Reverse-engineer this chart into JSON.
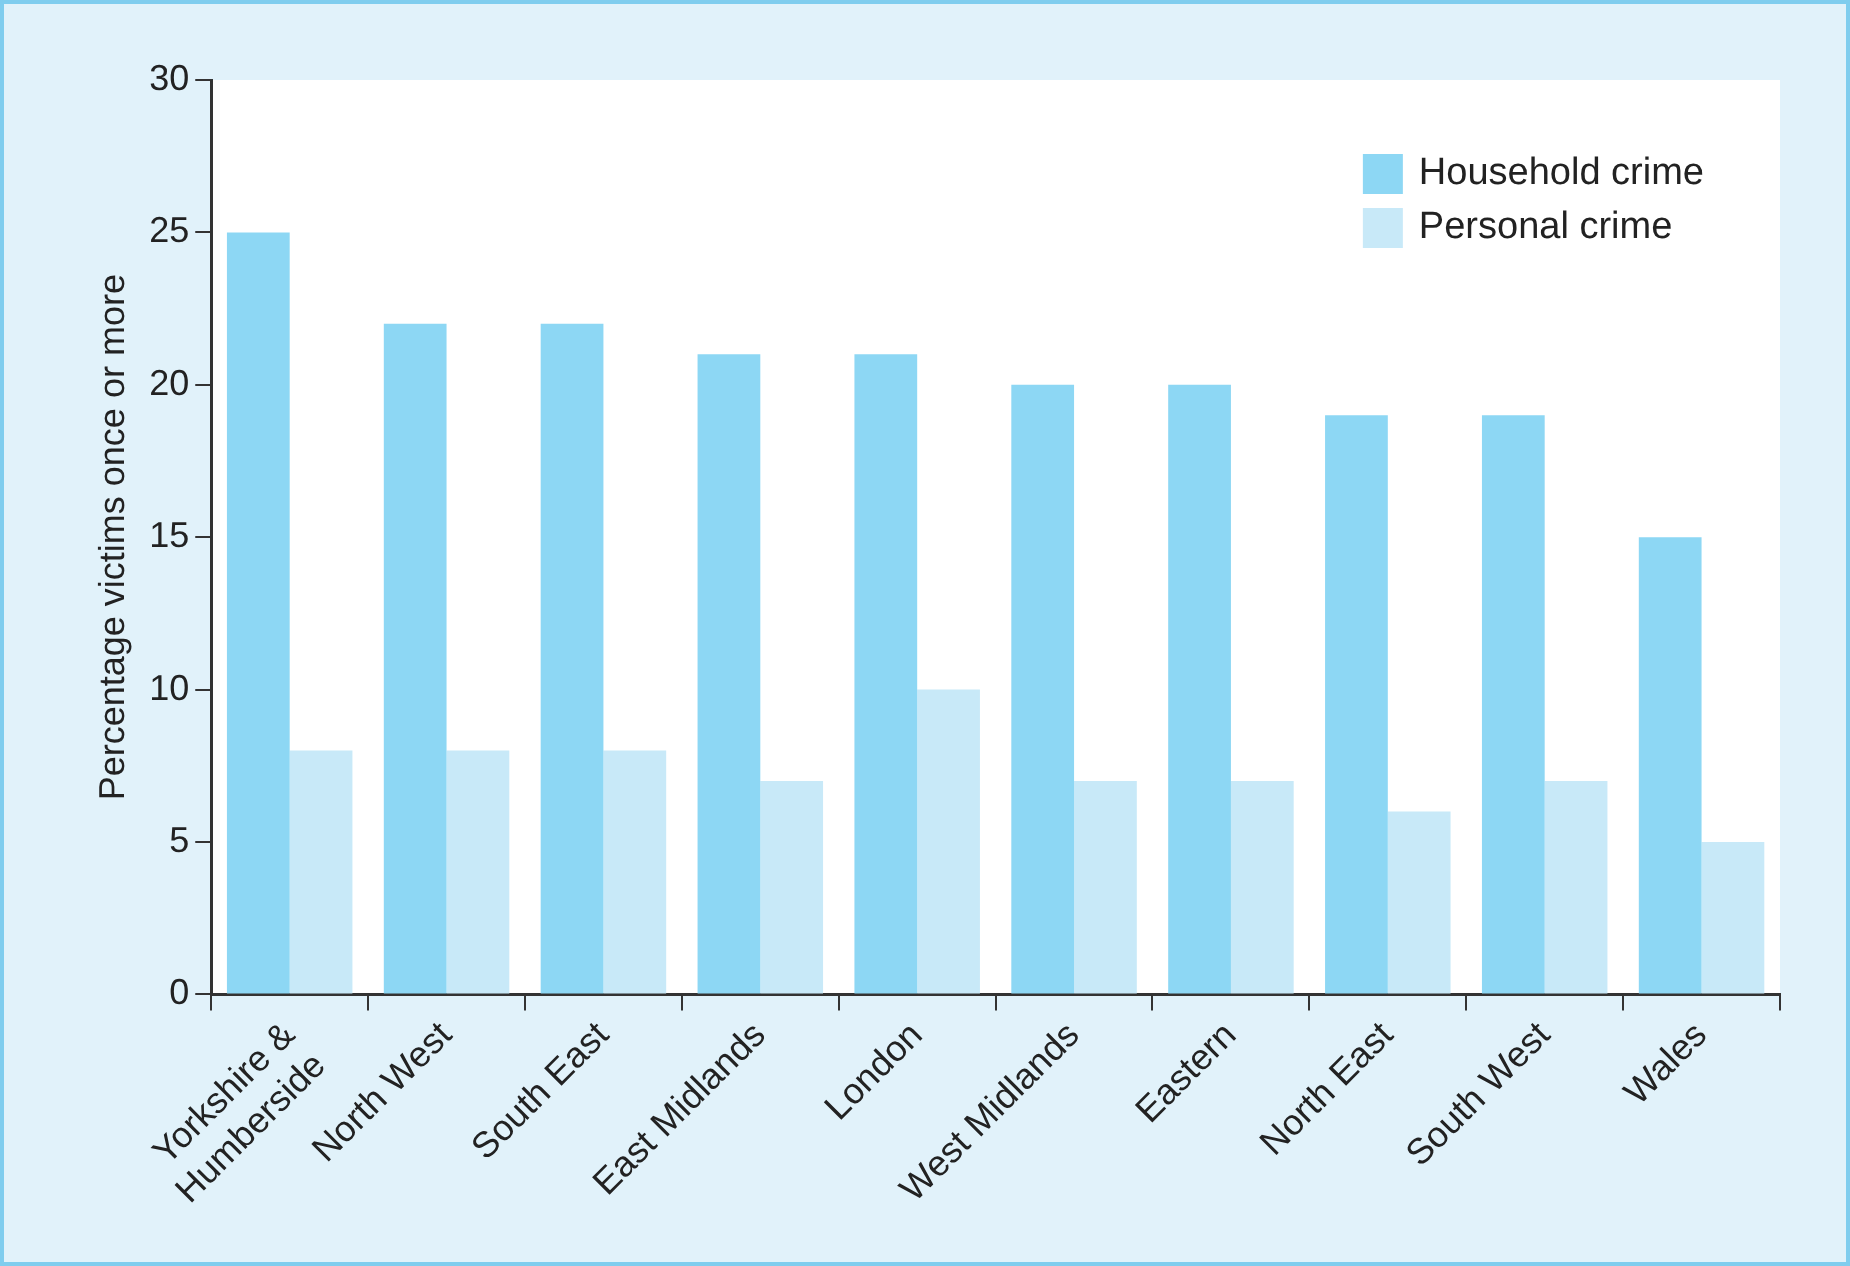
{
  "chart_data": {
    "type": "bar",
    "ylabel": "Percentage victims once or more",
    "categories": [
      "Yorkshire & Humberside",
      "North West",
      "South East",
      "East Midlands",
      "London",
      "West Midlands",
      "Eastern",
      "North East",
      "South West",
      "Wales"
    ],
    "series": [
      {
        "name": "Household crime",
        "color": "#8dd7f4",
        "values": [
          25,
          22,
          22,
          21,
          21,
          20,
          20,
          19,
          19,
          15
        ]
      },
      {
        "name": "Personal crime",
        "color": "#c8e9f8",
        "values": [
          8,
          8,
          8,
          7,
          10,
          7,
          7,
          6,
          7,
          5
        ]
      }
    ],
    "ylim": [
      0,
      30
    ],
    "yticks": [
      0,
      5,
      10,
      15,
      20,
      25,
      30
    ],
    "grid": false,
    "legend": "top right"
  }
}
